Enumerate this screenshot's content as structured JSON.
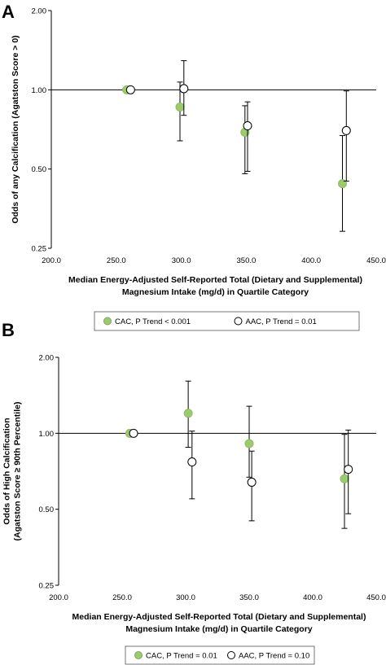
{
  "chart_data": [
    {
      "type": "scatter",
      "panel_label": "A",
      "xlabel_line1": "Median Energy-Adjusted Self-Reported Total (Dietary and Supplemental)",
      "xlabel_line2": "Magnesium Intake (mg/d) in Quartile Category",
      "ylabel_lines": [
        "Odds of any Calcification (Agatston Score > 0)"
      ],
      "xlim": [
        200,
        450
      ],
      "ylim": [
        0.25,
        2.0
      ],
      "yscale": "log",
      "x_ticks": [
        "200.0",
        "250.0",
        "300.0",
        "350.0",
        "400.0",
        "450.0"
      ],
      "y_ticks": [
        "0.25",
        "0.50",
        "1.00",
        "2.00"
      ],
      "reference_line": 1.0,
      "series": [
        {
          "name": "CAC, P Trend < 0.001",
          "color": "#9ccb6e",
          "fill": "#9ccb6e",
          "points": [
            {
              "x": 258,
              "y": 1.0,
              "lo": null,
              "hi": null
            },
            {
              "x": 299,
              "y": 0.86,
              "lo": 0.64,
              "hi": 1.07
            },
            {
              "x": 349,
              "y": 0.69,
              "lo": 0.48,
              "hi": 0.87
            },
            {
              "x": 424,
              "y": 0.44,
              "lo": 0.29,
              "hi": 0.67
            }
          ]
        },
        {
          "name": "AAC, P Trend = 0.01",
          "color": "#000000",
          "fill": "#ffffff",
          "points": [
            {
              "x": 261,
              "y": 1.0,
              "lo": null,
              "hi": null
            },
            {
              "x": 302,
              "y": 1.01,
              "lo": 0.8,
              "hi": 1.29
            },
            {
              "x": 351,
              "y": 0.73,
              "lo": 0.49,
              "hi": 0.9
            },
            {
              "x": 427,
              "y": 0.7,
              "lo": 0.45,
              "hi": 0.99
            }
          ]
        }
      ],
      "legend": [
        {
          "label": "CAC, P Trend < 0.001",
          "fill": "#9ccb6e",
          "stroke": "#7fa65a"
        },
        {
          "label": "AAC, P Trend = 0.01",
          "fill": "#ffffff",
          "stroke": "#000000"
        }
      ]
    },
    {
      "type": "scatter",
      "panel_label": "B",
      "xlabel_line1": "Median Energy-Adjusted Self-Reported Total (Dietary and Supplemental)",
      "xlabel_line2": "Magnesium Intake (mg/d) in Quartile Category",
      "ylabel_lines": [
        "Odds of High Calcification",
        "(Agatston Score ≥ 90th Percentile)"
      ],
      "xlim": [
        200,
        450
      ],
      "ylim": [
        0.25,
        2.0
      ],
      "yscale": "log",
      "x_ticks": [
        "200.0",
        "250.0",
        "300.0",
        "350.0",
        "400.0",
        "450.0"
      ],
      "y_ticks": [
        "0.25",
        "0.50",
        "1.00",
        "2.00"
      ],
      "reference_line": 1.0,
      "series": [
        {
          "name": "CAC, P Trend = 0.01",
          "color": "#9ccb6e",
          "fill": "#9ccb6e",
          "points": [
            {
              "x": 256,
              "y": 1.0,
              "lo": null,
              "hi": null
            },
            {
              "x": 302,
              "y": 1.2,
              "lo": 0.88,
              "hi": 1.61
            },
            {
              "x": 350,
              "y": 0.91,
              "lo": 0.67,
              "hi": 1.28
            },
            {
              "x": 425,
              "y": 0.66,
              "lo": 0.42,
              "hi": 0.99
            }
          ]
        },
        {
          "name": "AAC, P Trend = 0.10",
          "color": "#000000",
          "fill": "#ffffff",
          "points": [
            {
              "x": 259,
              "y": 1.0,
              "lo": null,
              "hi": null
            },
            {
              "x": 305,
              "y": 0.77,
              "lo": 0.55,
              "hi": 1.02
            },
            {
              "x": 352,
              "y": 0.64,
              "lo": 0.45,
              "hi": 0.85
            },
            {
              "x": 428,
              "y": 0.72,
              "lo": 0.48,
              "hi": 1.03
            }
          ]
        }
      ],
      "legend": [
        {
          "label": "CAC, P Trend = 0.01",
          "fill": "#9ccb6e",
          "stroke": "#7fa65a"
        },
        {
          "label": "AAC, P Trend = 0.10",
          "fill": "#ffffff",
          "stroke": "#000000"
        }
      ]
    }
  ]
}
